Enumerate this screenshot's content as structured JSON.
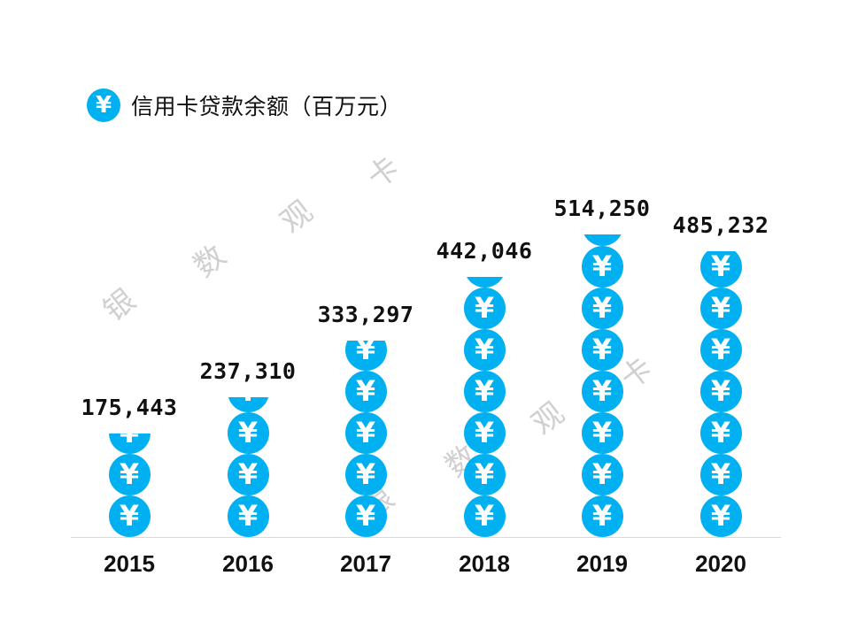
{
  "title": {
    "icon": "yuan-coin-icon",
    "icon_glyph": "¥",
    "text": "信用卡贷款余额（百万元）"
  },
  "watermark": {
    "chars": [
      "银",
      "数",
      "观",
      "卡"
    ]
  },
  "colors": {
    "coin": "#00b0f0",
    "baseline": "#d9d9d9",
    "watermark": "#d0d0d0"
  },
  "chart_data": {
    "type": "bar",
    "style": "pictograph (stacked ¥ coin icons, cropped at top for fractional value)",
    "title": "信用卡贷款余额（百万元）",
    "xlabel": "",
    "ylabel": "",
    "categories": [
      "2015",
      "2016",
      "2017",
      "2018",
      "2019",
      "2020"
    ],
    "values": [
      175443,
      237310,
      333297,
      442046,
      514250,
      485232
    ],
    "labels": [
      "175,443",
      "237,310",
      "333,297",
      "442,046",
      "514,250",
      "485,232"
    ],
    "unit": "百万元",
    "grid": false,
    "legend": false
  }
}
